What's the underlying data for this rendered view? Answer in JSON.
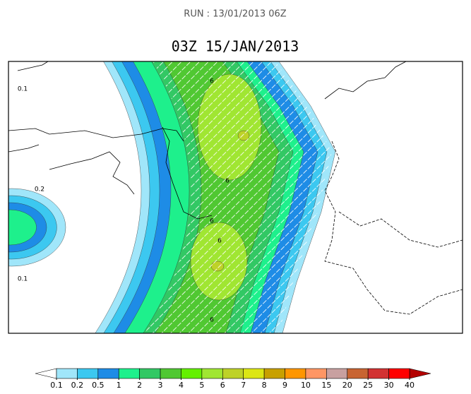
{
  "header": {
    "run": "RUN : 13/01/2013 06Z",
    "title": "03Z 15/JAN/2013"
  },
  "map": {
    "contour_labels": [
      "0.1",
      "0.2",
      "0.1",
      "6",
      "6",
      "6",
      "6",
      "6"
    ]
  },
  "colorbar": {
    "levels": [
      0.1,
      0.2,
      0.5,
      1,
      2,
      3,
      4,
      5,
      6,
      7,
      8,
      9,
      10,
      15,
      20,
      25,
      30,
      40
    ],
    "colors": [
      "#a0e6fa",
      "#3cc8f0",
      "#1e8ce6",
      "#1ef08c",
      "#32c864",
      "#50c832",
      "#64f000",
      "#a0e632",
      "#bed228",
      "#dce614",
      "#c8a000",
      "#ff9600",
      "#ff9664",
      "#c8a0a0",
      "#c86432",
      "#d23232",
      "#ff0000"
    ],
    "under_color": "#ffffff",
    "over_color": "#b40000"
  }
}
